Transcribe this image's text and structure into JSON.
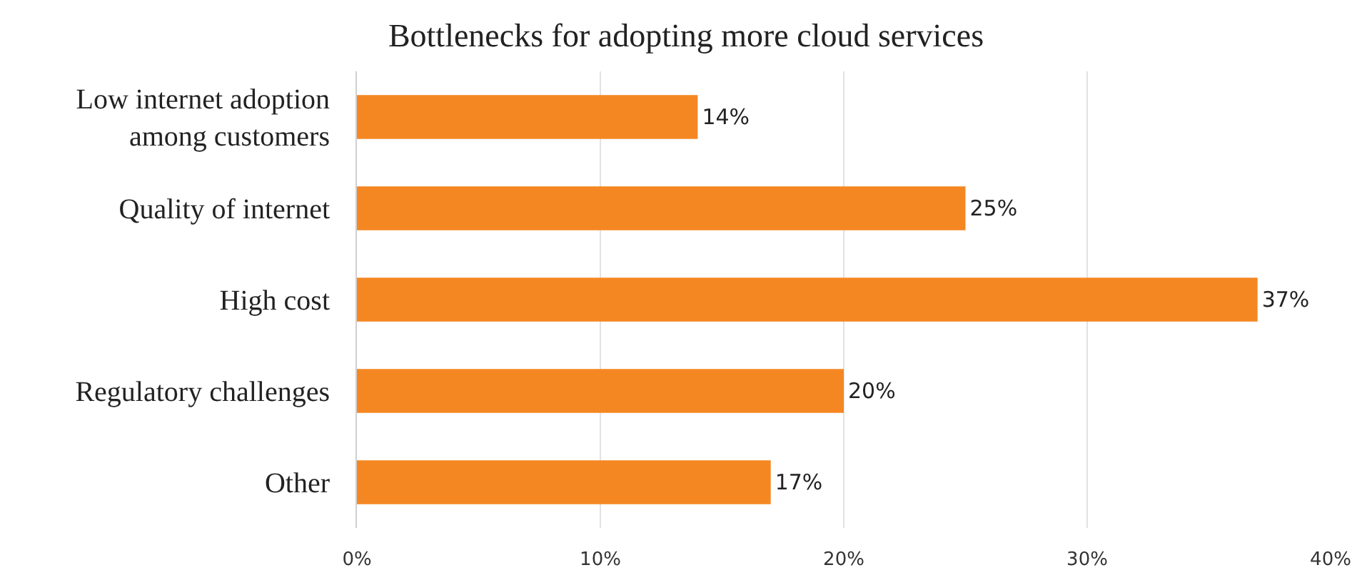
{
  "chart_data": {
    "type": "bar",
    "orientation": "horizontal",
    "title": "Bottlenecks for adopting more cloud services",
    "categories": [
      "Low internet adoption\namong customers",
      "Quality of internet",
      "High cost",
      "Regulatory challenges",
      "Other"
    ],
    "values": [
      14,
      25,
      37,
      20,
      17
    ],
    "value_labels": [
      "14%",
      "25%",
      "37%",
      "20%",
      "17%"
    ],
    "color": "#f58722",
    "xlim": [
      0,
      40
    ],
    "xticks": [
      {
        "value": 0,
        "label": "0%"
      },
      {
        "value": 10,
        "label": "10%"
      },
      {
        "value": 20,
        "label": "20%"
      },
      {
        "value": 30,
        "label": "30%"
      },
      {
        "value": 40,
        "label": "40%"
      }
    ],
    "grid": "x"
  }
}
